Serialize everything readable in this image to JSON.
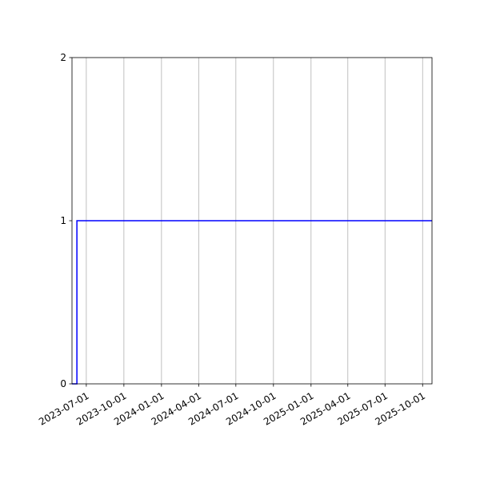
{
  "chart_data": {
    "type": "line",
    "drawstyle": "steps-post",
    "title": "",
    "xlabel": "",
    "ylabel": "",
    "xlim": [
      "2023-05-27",
      "2025-10-24"
    ],
    "ylim": [
      0,
      2
    ],
    "x_ticks": [
      "2023-07-01",
      "2023-10-01",
      "2024-01-01",
      "2024-04-01",
      "2024-07-01",
      "2024-10-01",
      "2025-01-01",
      "2025-04-01",
      "2025-07-01",
      "2025-10-01"
    ],
    "y_ticks": [
      0,
      1,
      2
    ],
    "grid": "x-only",
    "series": [
      {
        "color": "#0000ff",
        "x": [
          "2023-05-27",
          "2023-06-08",
          "2025-10-24"
        ],
        "values": [
          0,
          1,
          1
        ]
      }
    ]
  }
}
